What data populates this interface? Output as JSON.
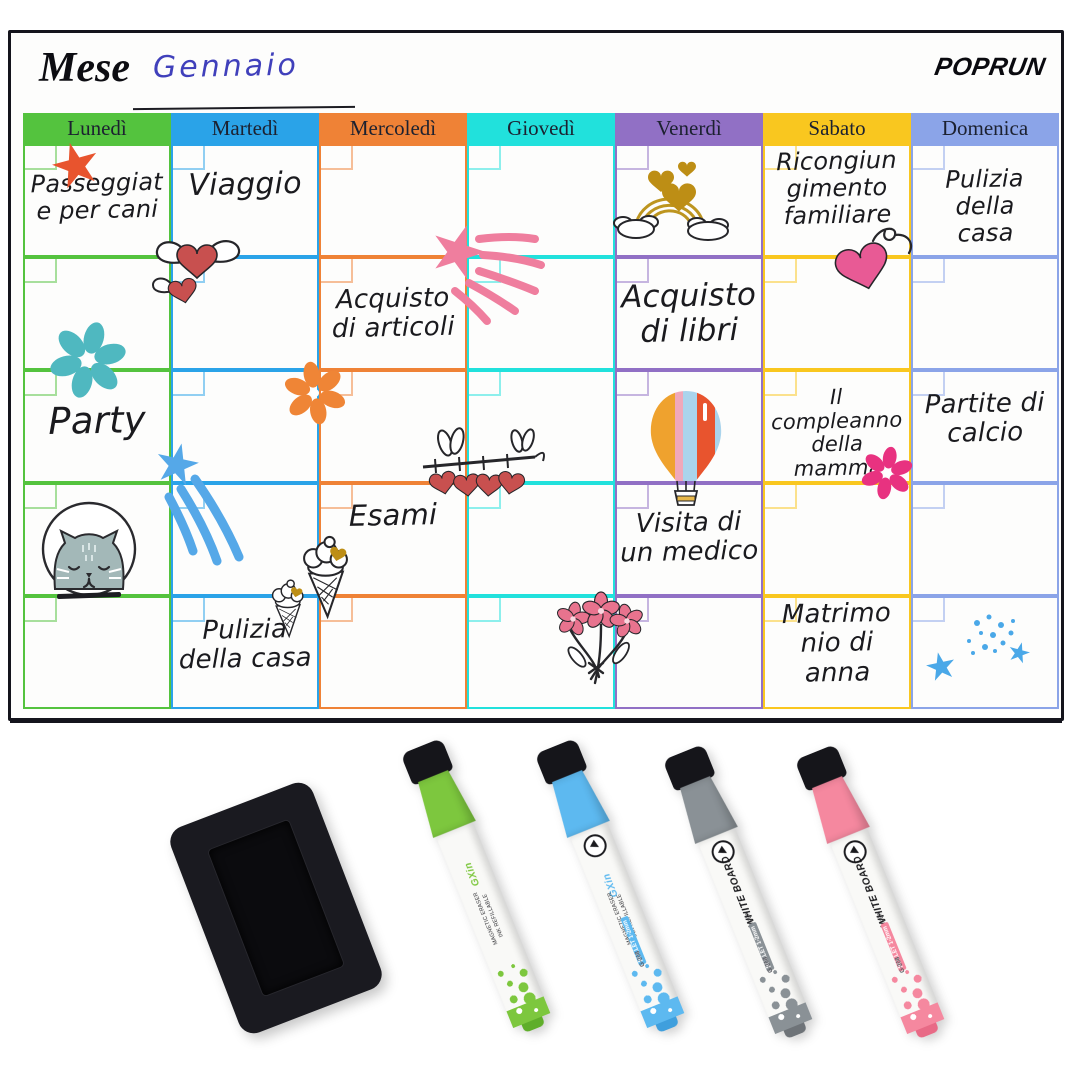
{
  "board": {
    "month_label": "Mese",
    "month_value": "Gennaio",
    "brand_logo": "POPRUN",
    "days": [
      {
        "label": "Lunedì",
        "color": "#54c33e"
      },
      {
        "label": "Martedì",
        "color": "#2aa3e8"
      },
      {
        "label": "Mercoledì",
        "color": "#ef8236"
      },
      {
        "label": "Giovedì",
        "color": "#21e1dc"
      },
      {
        "label": "Venerdì",
        "color": "#9170c5"
      },
      {
        "label": "Sabato",
        "color": "#f9c71f"
      },
      {
        "label": "Domenica",
        "color": "#8ba4e8"
      }
    ],
    "rows": [
      {
        "cells": [
          {
            "text": "Passeggiat\ne per cani"
          },
          {
            "text": "Viaggio"
          },
          {
            "text": ""
          },
          {
            "text": ""
          },
          {
            "text": ""
          },
          {
            "text": "Ricongiun\ngimento\nfamiliare"
          },
          {
            "text": "Pulizia della\ncasa"
          }
        ]
      },
      {
        "cells": [
          {
            "text": ""
          },
          {
            "text": ""
          },
          {
            "text": "Acquisto\ndi articoli"
          },
          {
            "text": ""
          },
          {
            "text": "Acquisto\ndi libri"
          },
          {
            "text": ""
          },
          {
            "text": ""
          }
        ]
      },
      {
        "cells": [
          {
            "text": "Party"
          },
          {
            "text": ""
          },
          {
            "text": ""
          },
          {
            "text": ""
          },
          {
            "text": ""
          },
          {
            "text": "Il compleanno\ndella mamma"
          },
          {
            "text": "Partite di\ncalcio"
          }
        ]
      },
      {
        "cells": [
          {
            "text": ""
          },
          {
            "text": ""
          },
          {
            "text": "Esami"
          },
          {
            "text": ""
          },
          {
            "text": "Visita di\nun medico"
          },
          {
            "text": ""
          },
          {
            "text": ""
          }
        ]
      },
      {
        "cells": [
          {
            "text": ""
          },
          {
            "text": "Pulizia\ndella casa"
          },
          {
            "text": ""
          },
          {
            "text": ""
          },
          {
            "text": ""
          },
          {
            "text": "Matrimo\nnio di\nanna"
          },
          {
            "text": ""
          }
        ]
      }
    ],
    "doodles": [
      "red-star",
      "winged-hearts",
      "pink-shooting-star",
      "rainbow-hearts",
      "pink-heart-swirl",
      "teal-flower",
      "orange-flower",
      "blue-shooting-star",
      "heart-vine",
      "hot-air-balloon",
      "pink-flower",
      "cat-in-bubble",
      "ice-cream-cones",
      "flower-bouquet",
      "blue-stars-dots"
    ]
  },
  "accessories": {
    "eraser_name": "magnetic-eraser",
    "markers": [
      {
        "name": "green-marker",
        "color": "#7dc73e",
        "dark": "#5fae2a",
        "brand": "GXin",
        "line1": "MAGNETIC ERASER",
        "line2": "INK REFILLABLE",
        "badge": "",
        "model": "",
        "icon": false
      },
      {
        "name": "blue-marker",
        "color": "#5db9f0",
        "dark": "#3f9fdd",
        "brand": "GXin",
        "line1": "MAGNETIC ERASER",
        "line2": "INK REFILLABLE",
        "badge": "BULLET 1-2mm",
        "model": "G-208",
        "icon": true
      },
      {
        "name": "gray-marker",
        "color": "#8a9196",
        "dark": "#6e7378",
        "brand": "WHITE BOARD",
        "line1": "MARKER",
        "line2": "",
        "badge": "BULLET 1-2mm",
        "model": "G-208",
        "icon": true
      },
      {
        "name": "pink-marker",
        "color": "#f5889f",
        "dark": "#e86a86",
        "brand": "WHITE BOARD",
        "line1": "MARKER",
        "line2": "",
        "badge": "BULLET 1-2mm",
        "model": "G-208",
        "icon": true
      }
    ]
  }
}
